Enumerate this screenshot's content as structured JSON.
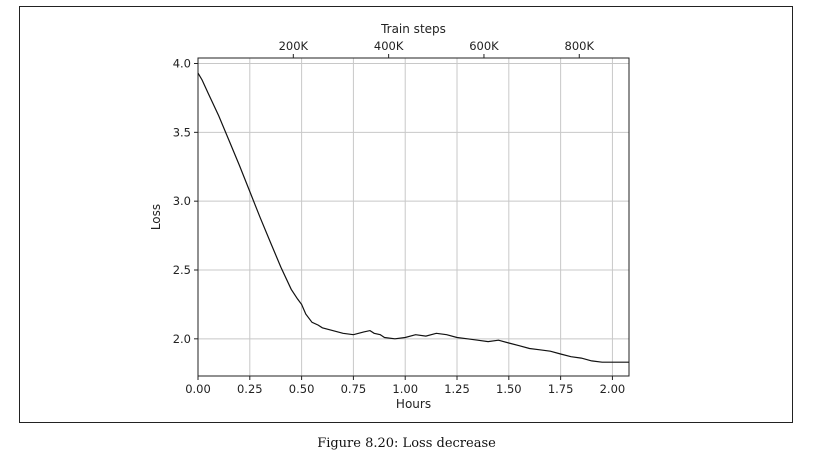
{
  "caption": "Figure 8.20: Loss decrease",
  "chart_data": {
    "type": "line",
    "xlabel": "Hours",
    "ylabel": "Loss",
    "top_xlabel": "Train steps",
    "xlim": [
      0.0,
      2.08
    ],
    "ylim": [
      1.73,
      4.04
    ],
    "x_ticks": [
      0.0,
      0.25,
      0.5,
      0.75,
      1.0,
      1.25,
      1.5,
      1.75,
      2.0
    ],
    "x_tick_labels": [
      "0.00",
      "0.25",
      "0.50",
      "0.75",
      "1.00",
      "1.25",
      "1.50",
      "1.75",
      "2.00"
    ],
    "y_ticks": [
      2.0,
      2.5,
      3.0,
      3.5,
      4.0
    ],
    "y_tick_labels": [
      "2.0",
      "2.5",
      "3.0",
      "3.5",
      "4.0"
    ],
    "top_x_ticks_hours": [
      0.46,
      0.92,
      1.38,
      1.84
    ],
    "top_x_tick_labels": [
      "200K",
      "400K",
      "600K",
      "800K"
    ],
    "grid": true,
    "line_color": "#111111",
    "series": [
      {
        "x": [
          0.0,
          0.02,
          0.05,
          0.1,
          0.15,
          0.2,
          0.25,
          0.3,
          0.35,
          0.4,
          0.45,
          0.48,
          0.5,
          0.52,
          0.55,
          0.58,
          0.6,
          0.65,
          0.7,
          0.75,
          0.8,
          0.83,
          0.85,
          0.88,
          0.9,
          0.95,
          1.0,
          1.05,
          1.1,
          1.15,
          1.2,
          1.25,
          1.3,
          1.35,
          1.4,
          1.45,
          1.5,
          1.55,
          1.6,
          1.65,
          1.7,
          1.75,
          1.8,
          1.85,
          1.9,
          1.95,
          2.0,
          2.05,
          2.08
        ],
        "y": [
          3.93,
          3.88,
          3.78,
          3.62,
          3.44,
          3.26,
          3.07,
          2.88,
          2.7,
          2.52,
          2.36,
          2.29,
          2.25,
          2.18,
          2.12,
          2.1,
          2.08,
          2.06,
          2.04,
          2.03,
          2.05,
          2.06,
          2.04,
          2.03,
          2.01,
          2.0,
          2.01,
          2.03,
          2.02,
          2.04,
          2.03,
          2.01,
          2.0,
          1.99,
          1.98,
          1.99,
          1.97,
          1.95,
          1.93,
          1.92,
          1.91,
          1.89,
          1.87,
          1.86,
          1.84,
          1.83,
          1.83,
          1.83,
          1.83
        ]
      }
    ]
  }
}
